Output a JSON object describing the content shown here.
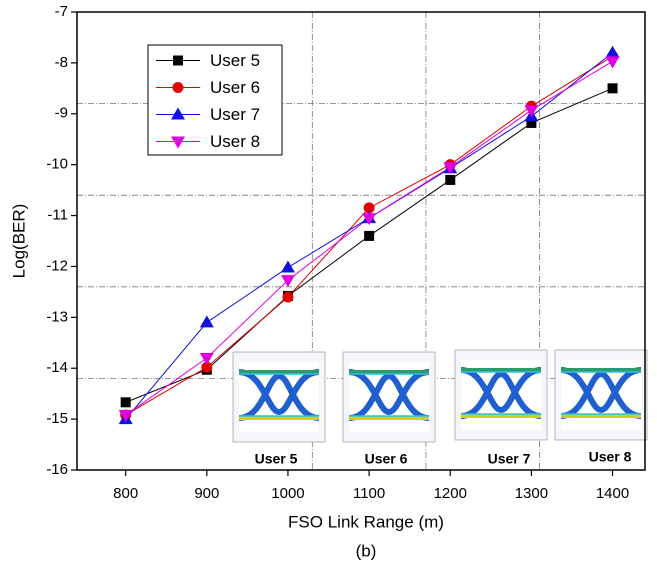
{
  "chart_data": {
    "type": "line",
    "x_label": "FSO Link Range (m)",
    "y_label": "Log(BER)",
    "caption": "(b)",
    "x": [
      800,
      900,
      1000,
      1100,
      1200,
      1300,
      1400
    ],
    "series": [
      {
        "name": "User 5",
        "color": "#000000",
        "marker": "square",
        "values": [
          -14.67,
          -14.03,
          -12.58,
          -11.4,
          -10.3,
          -9.18,
          -8.5
        ]
      },
      {
        "name": "User 6",
        "color": "#e00000",
        "marker": "circle",
        "values": [
          -14.92,
          -13.98,
          -12.6,
          -10.85,
          -10.0,
          -8.85,
          -7.87
        ]
      },
      {
        "name": "User 7",
        "color": "#1010e0",
        "marker": "triangle-up",
        "values": [
          -15.0,
          -13.1,
          -12.02,
          -11.05,
          -10.07,
          -9.05,
          -7.8
        ]
      },
      {
        "name": "User 8",
        "color": "#e000e0",
        "marker": "triangle-down",
        "values": [
          -14.92,
          -13.8,
          -12.27,
          -11.05,
          -10.05,
          -8.93,
          -7.97
        ]
      }
    ],
    "xlim": [
      740,
      1440
    ],
    "ylim": [
      -16,
      -7
    ],
    "xticks": [
      800,
      900,
      1000,
      1100,
      1200,
      1300,
      1400
    ],
    "yticks": [
      -16,
      -15,
      -14,
      -13,
      -12,
      -11,
      -10,
      -9,
      -8,
      -7
    ],
    "grid_x": [
      1030,
      1170,
      1310
    ],
    "grid_y": [
      -8.8,
      -10.6,
      -12.4,
      -14.2
    ],
    "legend": "top-left",
    "insets": [
      "User 5",
      "User 6",
      "User 7",
      "User 8"
    ]
  }
}
